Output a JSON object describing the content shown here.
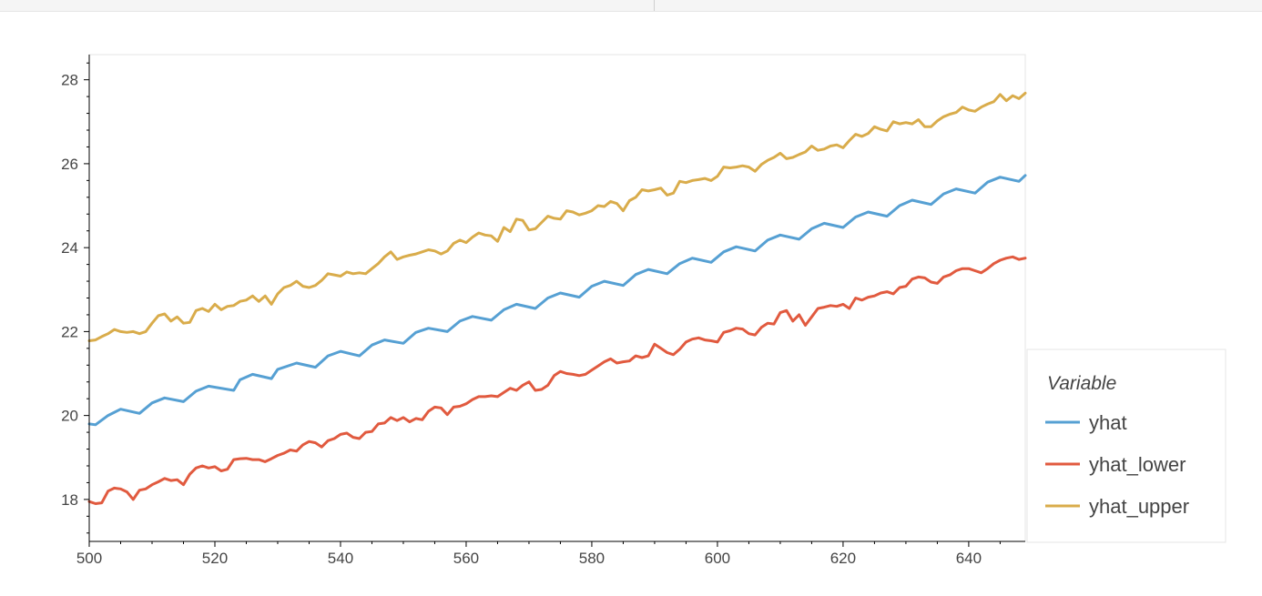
{
  "chart_data": {
    "type": "line",
    "title": "",
    "xlabel": "",
    "ylabel": "",
    "xlim": [
      500,
      649
    ],
    "ylim": [
      17,
      28.6
    ],
    "x_ticks": [
      500,
      520,
      540,
      560,
      580,
      600,
      620,
      640
    ],
    "y_ticks": [
      18,
      20,
      22,
      24,
      26,
      28
    ],
    "grid": false,
    "legend": {
      "title": "Variable",
      "placement": "right-bottom"
    },
    "series": [
      {
        "name": "yhat",
        "color": "#56a0d3",
        "x": [
          500,
          501,
          503,
          505,
          508,
          510,
          512,
          515,
          517,
          519,
          523,
          524,
          526,
          529,
          530,
          533,
          536,
          538,
          540,
          543,
          545,
          547,
          550,
          552,
          554,
          557,
          559,
          561,
          564,
          566,
          568,
          571,
          573,
          575,
          578,
          580,
          582,
          585,
          587,
          589,
          592,
          594,
          596,
          599,
          601,
          603,
          606,
          608,
          610,
          613,
          615,
          617,
          620,
          622,
          624,
          627,
          629,
          631,
          634,
          636,
          638,
          641,
          643,
          645,
          648,
          649
        ],
        "y": [
          19.8,
          19.78,
          20.0,
          20.15,
          20.05,
          20.3,
          20.42,
          20.33,
          20.58,
          20.7,
          20.6,
          20.85,
          20.98,
          20.88,
          21.1,
          21.25,
          21.15,
          21.42,
          21.53,
          21.42,
          21.68,
          21.8,
          21.72,
          21.98,
          22.08,
          22.0,
          22.25,
          22.36,
          22.27,
          22.52,
          22.65,
          22.55,
          22.8,
          22.92,
          22.82,
          23.08,
          23.2,
          23.1,
          23.36,
          23.48,
          23.38,
          23.62,
          23.75,
          23.65,
          23.9,
          24.02,
          23.92,
          24.18,
          24.3,
          24.2,
          24.45,
          24.58,
          24.48,
          24.73,
          24.85,
          24.75,
          25.0,
          25.13,
          25.03,
          25.28,
          25.4,
          25.3,
          25.56,
          25.68,
          25.58,
          25.72
        ]
      },
      {
        "name": "yhat_lower",
        "color": "#e15a3f",
        "x": [
          500,
          501,
          502,
          503,
          504,
          505,
          506,
          507,
          508,
          509,
          510,
          511,
          512,
          513,
          514,
          515,
          516,
          517,
          518,
          519,
          520,
          521,
          522,
          523,
          524,
          525,
          526,
          527,
          528,
          529,
          530,
          531,
          532,
          533,
          534,
          535,
          536,
          537,
          538,
          539,
          540,
          541,
          542,
          543,
          544,
          545,
          546,
          547,
          548,
          549,
          550,
          551,
          552,
          553,
          554,
          555,
          556,
          557,
          558,
          559,
          560,
          561,
          562,
          563,
          564,
          565,
          566,
          567,
          568,
          569,
          570,
          571,
          572,
          573,
          574,
          575,
          576,
          577,
          578,
          579,
          580,
          581,
          582,
          583,
          584,
          585,
          586,
          587,
          588,
          589,
          590,
          591,
          592,
          593,
          594,
          595,
          596,
          597,
          598,
          599,
          600,
          601,
          602,
          603,
          604,
          605,
          606,
          607,
          608,
          609,
          610,
          611,
          612,
          613,
          614,
          615,
          616,
          617,
          618,
          619,
          620,
          621,
          622,
          623,
          624,
          625,
          626,
          627,
          628,
          629,
          630,
          631,
          632,
          633,
          634,
          635,
          636,
          637,
          638,
          639,
          640,
          641,
          642,
          643,
          644,
          645,
          646,
          647,
          648,
          649
        ],
        "y": [
          17.95,
          17.9,
          17.92,
          18.2,
          18.27,
          18.25,
          18.18,
          18.0,
          18.22,
          18.25,
          18.35,
          18.42,
          18.5,
          18.45,
          18.47,
          18.35,
          18.6,
          18.75,
          18.8,
          18.75,
          18.78,
          18.68,
          18.72,
          18.95,
          18.97,
          18.98,
          18.95,
          18.95,
          18.9,
          18.97,
          19.05,
          19.1,
          19.18,
          19.15,
          19.3,
          19.38,
          19.35,
          19.25,
          19.4,
          19.45,
          19.55,
          19.58,
          19.48,
          19.45,
          19.6,
          19.62,
          19.8,
          19.82,
          19.95,
          19.88,
          19.95,
          19.85,
          19.93,
          19.9,
          20.1,
          20.2,
          20.18,
          20.02,
          20.2,
          20.22,
          20.28,
          20.38,
          20.45,
          20.45,
          20.47,
          20.45,
          20.55,
          20.65,
          20.6,
          20.72,
          20.8,
          20.6,
          20.62,
          20.72,
          20.95,
          21.05,
          21.0,
          20.98,
          20.95,
          20.98,
          21.08,
          21.18,
          21.28,
          21.35,
          21.25,
          21.28,
          21.3,
          21.42,
          21.38,
          21.42,
          21.7,
          21.6,
          21.5,
          21.45,
          21.58,
          21.75,
          21.82,
          21.85,
          21.8,
          21.78,
          21.75,
          21.98,
          22.02,
          22.08,
          22.06,
          21.95,
          21.92,
          22.1,
          22.2,
          22.18,
          22.45,
          22.5,
          22.25,
          22.4,
          22.15,
          22.35,
          22.55,
          22.58,
          22.62,
          22.6,
          22.65,
          22.55,
          22.8,
          22.75,
          22.82,
          22.85,
          22.92,
          22.95,
          22.9,
          23.05,
          23.08,
          23.25,
          23.3,
          23.28,
          23.18,
          23.15,
          23.3,
          23.35,
          23.45,
          23.5,
          23.5,
          23.45,
          23.4,
          23.5,
          23.62,
          23.7,
          23.75,
          23.78,
          23.72,
          23.75
        ],
        "y_trim_note": ""
      },
      {
        "name": "yhat_upper",
        "color": "#d9ac4b",
        "x": [
          500,
          501,
          502,
          503,
          504,
          505,
          506,
          507,
          508,
          509,
          510,
          511,
          512,
          513,
          514,
          515,
          516,
          517,
          518,
          519,
          520,
          521,
          522,
          523,
          524,
          525,
          526,
          527,
          528,
          529,
          530,
          531,
          532,
          533,
          534,
          535,
          536,
          537,
          538,
          539,
          540,
          541,
          542,
          543,
          544,
          545,
          546,
          547,
          548,
          549,
          550,
          551,
          552,
          553,
          554,
          555,
          556,
          557,
          558,
          559,
          560,
          561,
          562,
          563,
          564,
          565,
          566,
          567,
          568,
          569,
          570,
          571,
          572,
          573,
          574,
          575,
          576,
          577,
          578,
          579,
          580,
          581,
          582,
          583,
          584,
          585,
          586,
          587,
          588,
          589,
          590,
          591,
          592,
          593,
          594,
          595,
          596,
          597,
          598,
          599,
          600,
          601,
          602,
          603,
          604,
          605,
          606,
          607,
          608,
          609,
          610,
          611,
          612,
          613,
          614,
          615,
          616,
          617,
          618,
          619,
          620,
          621,
          622,
          623,
          624,
          625,
          626,
          627,
          628,
          629,
          630,
          631,
          632,
          633,
          634,
          635,
          636,
          637,
          638,
          639,
          640,
          641,
          642,
          643,
          644,
          645,
          646,
          647,
          648,
          649
        ],
        "y": [
          21.78,
          21.8,
          21.88,
          21.95,
          22.05,
          22.0,
          21.98,
          22.0,
          21.95,
          22.0,
          22.2,
          22.38,
          22.42,
          22.25,
          22.35,
          22.2,
          22.22,
          22.5,
          22.55,
          22.48,
          22.65,
          22.52,
          22.6,
          22.62,
          22.72,
          22.75,
          22.85,
          22.72,
          22.85,
          22.65,
          22.9,
          23.05,
          23.1,
          23.2,
          23.08,
          23.05,
          23.1,
          23.22,
          23.38,
          23.35,
          23.32,
          23.42,
          23.38,
          23.4,
          23.38,
          23.5,
          23.62,
          23.78,
          23.9,
          23.72,
          23.78,
          23.82,
          23.85,
          23.9,
          23.95,
          23.92,
          23.85,
          23.92,
          24.1,
          24.18,
          24.12,
          24.25,
          24.35,
          24.3,
          24.28,
          24.15,
          24.48,
          24.38,
          24.68,
          24.65,
          24.42,
          24.45,
          24.6,
          24.75,
          24.7,
          24.68,
          24.88,
          24.85,
          24.78,
          24.82,
          24.88,
          25.0,
          24.98,
          25.1,
          25.05,
          24.88,
          25.12,
          25.2,
          25.38,
          25.35,
          25.38,
          25.42,
          25.25,
          25.3,
          25.58,
          25.55,
          25.6,
          25.62,
          25.65,
          25.6,
          25.7,
          25.92,
          25.9,
          25.92,
          25.95,
          25.92,
          25.82,
          25.98,
          26.08,
          26.15,
          26.25,
          26.12,
          26.15,
          26.22,
          26.28,
          26.42,
          26.32,
          26.35,
          26.42,
          26.45,
          26.38,
          26.55,
          26.7,
          26.65,
          26.72,
          26.88,
          26.82,
          26.78,
          27.0,
          26.95,
          26.98,
          26.95,
          27.05,
          26.88,
          26.88,
          27.02,
          27.12,
          27.18,
          27.22,
          27.35,
          27.28,
          27.25,
          27.35,
          27.42,
          27.48,
          27.65,
          27.5,
          27.62,
          27.55,
          27.68
        ]
      }
    ]
  }
}
